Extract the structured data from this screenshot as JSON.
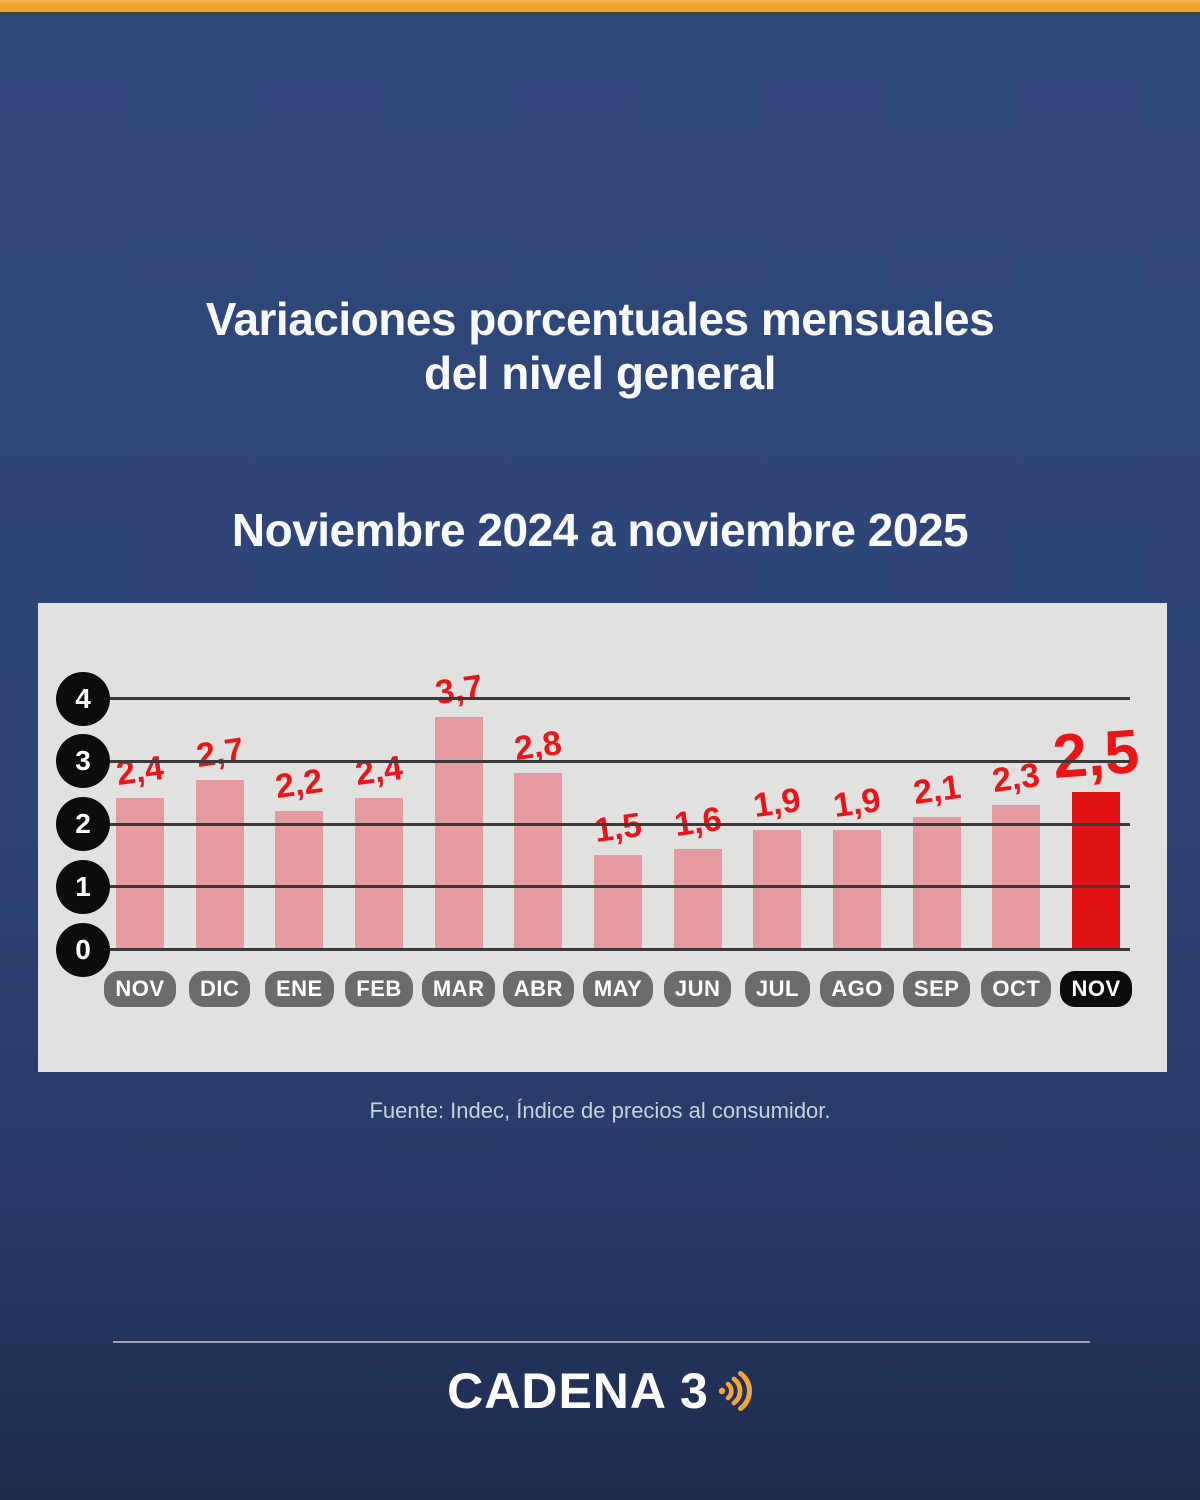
{
  "header": {
    "top_bar_color": "#f0a233",
    "title_line1": "Variaciones porcentuales mensuales",
    "title_line2": "del nivel general",
    "subtitle": "Noviembre 2024 a noviembre 2025"
  },
  "chart_data": {
    "type": "bar",
    "title": "Variaciones porcentuales mensuales del nivel general",
    "period": "Noviembre 2024 a noviembre 2025",
    "categories": [
      "NOV",
      "DIC",
      "ENE",
      "FEB",
      "MAR",
      "ABR",
      "MAY",
      "JUN",
      "JUL",
      "AGO",
      "SEP",
      "OCT",
      "NOV"
    ],
    "values": [
      2.4,
      2.7,
      2.2,
      2.4,
      3.7,
      2.8,
      1.5,
      1.6,
      1.9,
      1.9,
      2.1,
      2.3,
      2.5
    ],
    "value_labels": [
      "2,4",
      "2,7",
      "2,2",
      "2,4",
      "3,7",
      "2,8",
      "1,5",
      "1,6",
      "1,9",
      "1,9",
      "2,1",
      "2,3",
      "2,5"
    ],
    "highlight_index": 12,
    "y_ticks": [
      0,
      1,
      2,
      3,
      4
    ],
    "ylim": [
      0,
      4.5
    ],
    "grid": true,
    "legend": "none",
    "xlabel": "",
    "ylabel": "",
    "bar_color": "#e49a9e",
    "highlight_bar_color": "#e01115",
    "label_color": "#ea1518",
    "panel_color": "#e1e1df",
    "gridline_color": "#3a3a3a",
    "tick_bg_color": "#0c0c0c",
    "month_pill_color": "#6b6b6b",
    "month_pill_highlight_color": "#0c0c0c"
  },
  "footer": {
    "source": "Fuente: Indec, Índice de precios al consumidor.",
    "brand": "CADENA 3",
    "sound_icon_color": "#f2a53e"
  }
}
